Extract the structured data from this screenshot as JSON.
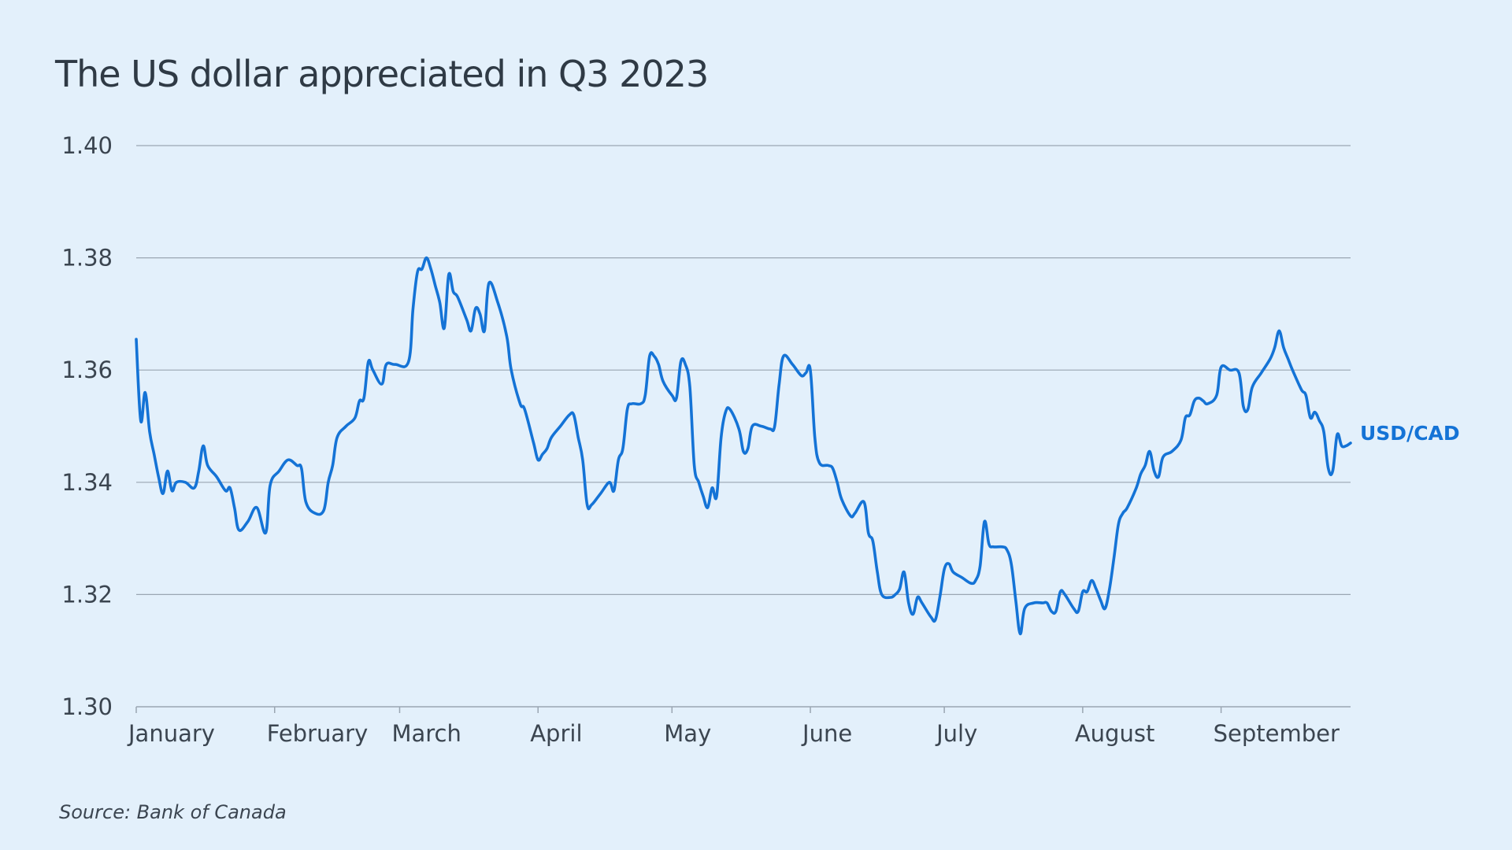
{
  "chart_data": {
    "type": "line",
    "title": "The US dollar appreciated in Q3 2023",
    "source": "Source: Bank of Canada",
    "xlabel": "",
    "ylabel": "",
    "ylim": [
      1.3,
      1.4
    ],
    "y_ticks": [
      "1.30",
      "1.32",
      "1.34",
      "1.36",
      "1.38",
      "1.40"
    ],
    "x_tick_labels": [
      "January",
      "February",
      "March",
      "April",
      "May",
      "June",
      "July",
      "August",
      "September"
    ],
    "x_range_days": [
      1,
      273
    ],
    "month_start_days": [
      1,
      32,
      60,
      91,
      121,
      152,
      182,
      213,
      244
    ],
    "grid": true,
    "colors": {
      "background": "#e3f0fb",
      "series": "#1473d6",
      "grid": "#9aa6b2",
      "text": "#2f3a45"
    },
    "series": [
      {
        "name": "USD/CAD",
        "color": "#1473d6",
        "points": [
          [
            1,
            1.3655
          ],
          [
            2,
            1.351
          ],
          [
            3,
            1.356
          ],
          [
            4,
            1.349
          ],
          [
            5,
            1.345
          ],
          [
            6,
            1.341
          ],
          [
            7,
            1.338
          ],
          [
            8,
            1.342
          ],
          [
            9,
            1.3385
          ],
          [
            10,
            1.34
          ],
          [
            12,
            1.34
          ],
          [
            14,
            1.339
          ],
          [
            15,
            1.342
          ],
          [
            16,
            1.3465
          ],
          [
            17,
            1.343
          ],
          [
            19,
            1.341
          ],
          [
            21,
            1.3385
          ],
          [
            22,
            1.339
          ],
          [
            23,
            1.3355
          ],
          [
            24,
            1.3315
          ],
          [
            26,
            1.333
          ],
          [
            28,
            1.3355
          ],
          [
            30,
            1.331
          ],
          [
            31,
            1.3395
          ],
          [
            33,
            1.342
          ],
          [
            35,
            1.344
          ],
          [
            37,
            1.343
          ],
          [
            38,
            1.3425
          ],
          [
            39,
            1.3365
          ],
          [
            41,
            1.3345
          ],
          [
            43,
            1.335
          ],
          [
            44,
            1.34
          ],
          [
            45,
            1.343
          ],
          [
            46,
            1.348
          ],
          [
            48,
            1.35
          ],
          [
            50,
            1.3515
          ],
          [
            51,
            1.3545
          ],
          [
            52,
            1.355
          ],
          [
            53,
            1.3615
          ],
          [
            54,
            1.36
          ],
          [
            56,
            1.3575
          ],
          [
            57,
            1.361
          ],
          [
            59,
            1.361
          ],
          [
            62,
            1.3615
          ],
          [
            63,
            1.371
          ],
          [
            64,
            1.3775
          ],
          [
            65,
            1.378
          ],
          [
            66,
            1.38
          ],
          [
            67,
            1.378
          ],
          [
            68,
            1.375
          ],
          [
            69,
            1.372
          ],
          [
            70,
            1.3675
          ],
          [
            71,
            1.377
          ],
          [
            72,
            1.374
          ],
          [
            73,
            1.373
          ],
          [
            75,
            1.369
          ],
          [
            76,
            1.367
          ],
          [
            77,
            1.371
          ],
          [
            78,
            1.37
          ],
          [
            79,
            1.367
          ],
          [
            80,
            1.3755
          ],
          [
            82,
            1.372
          ],
          [
            84,
            1.366
          ],
          [
            85,
            1.36
          ],
          [
            87,
            1.354
          ],
          [
            88,
            1.353
          ],
          [
            90,
            1.347
          ],
          [
            91,
            1.344
          ],
          [
            92,
            1.345
          ],
          [
            93,
            1.346
          ],
          [
            94,
            1.348
          ],
          [
            96,
            1.35
          ],
          [
            98,
            1.352
          ],
          [
            99,
            1.352
          ],
          [
            100,
            1.348
          ],
          [
            101,
            1.344
          ],
          [
            102,
            1.336
          ],
          [
            103,
            1.336
          ],
          [
            105,
            1.338
          ],
          [
            107,
            1.34
          ],
          [
            108,
            1.3385
          ],
          [
            109,
            1.344
          ],
          [
            110,
            1.346
          ],
          [
            111,
            1.353
          ],
          [
            112,
            1.354
          ],
          [
            114,
            1.354
          ],
          [
            115,
            1.3555
          ],
          [
            116,
            1.3625
          ],
          [
            117,
            1.3625
          ],
          [
            118,
            1.361
          ],
          [
            119,
            1.358
          ],
          [
            121,
            1.3555
          ],
          [
            122,
            1.355
          ],
          [
            123,
            1.3615
          ],
          [
            124,
            1.361
          ],
          [
            125,
            1.357
          ],
          [
            126,
            1.343
          ],
          [
            127,
            1.34
          ],
          [
            128,
            1.3375
          ],
          [
            129,
            1.3355
          ],
          [
            130,
            1.339
          ],
          [
            131,
            1.3375
          ],
          [
            132,
            1.348
          ],
          [
            133,
            1.3525
          ],
          [
            134,
            1.353
          ],
          [
            136,
            1.3495
          ],
          [
            137,
            1.3455
          ],
          [
            138,
            1.346
          ],
          [
            139,
            1.35
          ],
          [
            141,
            1.35
          ],
          [
            143,
            1.3495
          ],
          [
            144,
            1.35
          ],
          [
            145,
            1.3575
          ],
          [
            146,
            1.3625
          ],
          [
            148,
            1.361
          ],
          [
            150,
            1.359
          ],
          [
            151,
            1.3595
          ],
          [
            152,
            1.36
          ],
          [
            153,
            1.348
          ],
          [
            154,
            1.3435
          ],
          [
            156,
            1.343
          ],
          [
            157,
            1.3425
          ],
          [
            158,
            1.34
          ],
          [
            159,
            1.337
          ],
          [
            161,
            1.334
          ],
          [
            162,
            1.3345
          ],
          [
            164,
            1.3365
          ],
          [
            165,
            1.331
          ],
          [
            166,
            1.3295
          ],
          [
            167,
            1.324
          ],
          [
            168,
            1.32
          ],
          [
            170,
            1.3195
          ],
          [
            171,
            1.32
          ],
          [
            172,
            1.321
          ],
          [
            173,
            1.324
          ],
          [
            174,
            1.3185
          ],
          [
            175,
            1.3165
          ],
          [
            176,
            1.3195
          ],
          [
            177,
            1.3185
          ],
          [
            179,
            1.316
          ],
          [
            180,
            1.3155
          ],
          [
            181,
            1.3195
          ],
          [
            182,
            1.3245
          ],
          [
            183,
            1.3255
          ],
          [
            184,
            1.324
          ],
          [
            186,
            1.323
          ],
          [
            188,
            1.322
          ],
          [
            189,
            1.3225
          ],
          [
            190,
            1.325
          ],
          [
            191,
            1.333
          ],
          [
            192,
            1.329
          ],
          [
            193,
            1.3285
          ],
          [
            195,
            1.3285
          ],
          [
            196,
            1.328
          ],
          [
            197,
            1.3255
          ],
          [
            198,
            1.319
          ],
          [
            199,
            1.313
          ],
          [
            200,
            1.3175
          ],
          [
            202,
            1.3185
          ],
          [
            204,
            1.3185
          ],
          [
            205,
            1.3185
          ],
          [
            206,
            1.317
          ],
          [
            207,
            1.317
          ],
          [
            208,
            1.3205
          ],
          [
            209,
            1.32
          ],
          [
            211,
            1.3175
          ],
          [
            212,
            1.317
          ],
          [
            213,
            1.3205
          ],
          [
            214,
            1.3205
          ],
          [
            215,
            1.3225
          ],
          [
            216,
            1.321
          ],
          [
            217,
            1.319
          ],
          [
            218,
            1.3175
          ],
          [
            219,
            1.321
          ],
          [
            220,
            1.3265
          ],
          [
            221,
            1.3325
          ],
          [
            222,
            1.3345
          ],
          [
            223,
            1.3355
          ],
          [
            225,
            1.339
          ],
          [
            226,
            1.3415
          ],
          [
            227,
            1.343
          ],
          [
            228,
            1.3455
          ],
          [
            229,
            1.342
          ],
          [
            230,
            1.341
          ],
          [
            231,
            1.3445
          ],
          [
            233,
            1.3455
          ],
          [
            235,
            1.3475
          ],
          [
            236,
            1.3515
          ],
          [
            237,
            1.352
          ],
          [
            238,
            1.3545
          ],
          [
            239,
            1.355
          ],
          [
            240,
            1.3545
          ],
          [
            241,
            1.354
          ],
          [
            243,
            1.3555
          ],
          [
            244,
            1.3605
          ],
          [
            246,
            1.36
          ],
          [
            248,
            1.3595
          ],
          [
            249,
            1.3535
          ],
          [
            250,
            1.353
          ],
          [
            251,
            1.357
          ],
          [
            253,
            1.3595
          ],
          [
            255,
            1.362
          ],
          [
            256,
            1.364
          ],
          [
            257,
            1.367
          ],
          [
            258,
            1.364
          ],
          [
            259,
            1.362
          ],
          [
            260,
            1.36
          ],
          [
            262,
            1.3565
          ],
          [
            263,
            1.3555
          ],
          [
            264,
            1.3515
          ],
          [
            265,
            1.3525
          ],
          [
            266,
            1.351
          ],
          [
            267,
            1.349
          ],
          [
            268,
            1.3425
          ],
          [
            269,
            1.342
          ],
          [
            270,
            1.3485
          ],
          [
            271,
            1.3465
          ],
          [
            272,
            1.3465
          ],
          [
            273,
            1.347
          ]
        ]
      }
    ]
  }
}
